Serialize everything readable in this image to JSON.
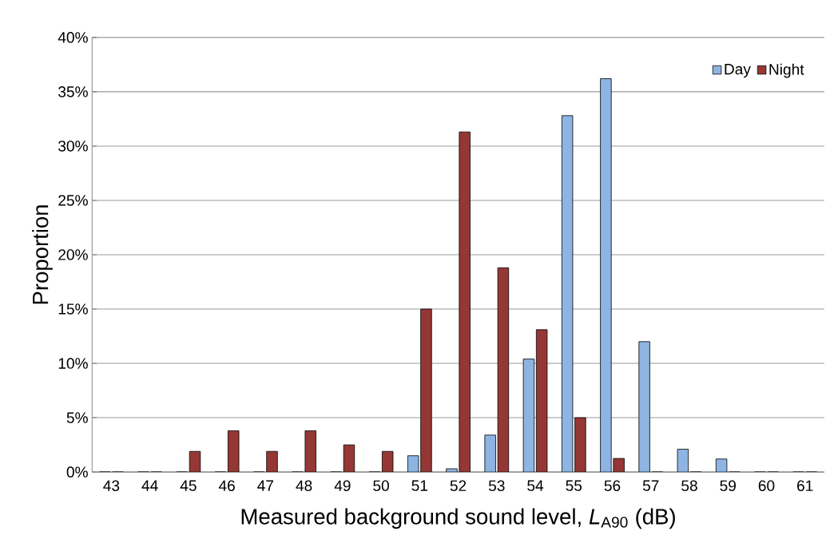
{
  "chart_data": {
    "type": "bar",
    "xlabel": "Measured background sound level, *L*$_{A90}$ (dB)",
    "ylabel": "Proportion",
    "categories": [
      "43",
      "44",
      "45",
      "46",
      "47",
      "48",
      "49",
      "50",
      "51",
      "52",
      "53",
      "54",
      "55",
      "56",
      "57",
      "58",
      "59",
      "60",
      "61"
    ],
    "series": [
      {
        "name": "Day",
        "color": "#8db4e2",
        "values": [
          0,
          0,
          0,
          0,
          0,
          0,
          0,
          0,
          1.5,
          0.3,
          3.4,
          10.4,
          32.8,
          36.2,
          12,
          2.1,
          1.2,
          0,
          0
        ]
      },
      {
        "name": "Night",
        "color": "#953735",
        "values": [
          0,
          0,
          1.9,
          3.8,
          1.9,
          3.8,
          2.5,
          1.9,
          15,
          31.3,
          18.8,
          13.1,
          5,
          1.25,
          0,
          0,
          0,
          0,
          0
        ]
      }
    ],
    "ylim": [
      0,
      40
    ],
    "yticks": [
      {
        "value": 0,
        "label": "0%"
      },
      {
        "value": 5,
        "label": "5%"
      },
      {
        "value": 10,
        "label": "10%"
      },
      {
        "value": 15,
        "label": "15%"
      },
      {
        "value": 20,
        "label": "20%"
      },
      {
        "value": 25,
        "label": "25%"
      },
      {
        "value": 30,
        "label": "30%"
      },
      {
        "value": 35,
        "label": "35%"
      },
      {
        "value": 40,
        "label": "40%"
      }
    ],
    "grid": "y",
    "legend": "top right"
  }
}
